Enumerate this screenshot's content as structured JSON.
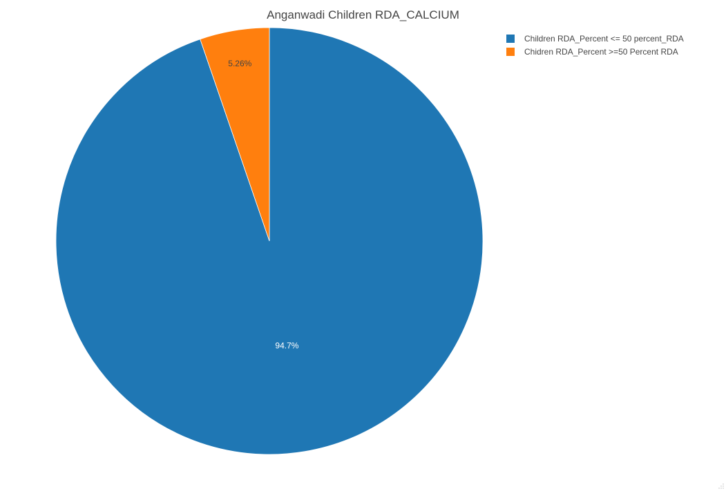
{
  "chart_data": {
    "type": "pie",
    "title": "Anganwadi Children RDA_CALCIUM",
    "categories": [
      "Children RDA_Percent <= 50 percent_RDA",
      "Chidren RDA_Percent >=50 Percent RDA"
    ],
    "values": [
      94.74,
      5.26
    ],
    "labels": [
      "94.7%",
      "5.26%"
    ],
    "colors": [
      "#1f77b4",
      "#ff7f0e"
    ],
    "legend": "top-right"
  },
  "icons": {
    "resize": "resize-grip-icon"
  }
}
